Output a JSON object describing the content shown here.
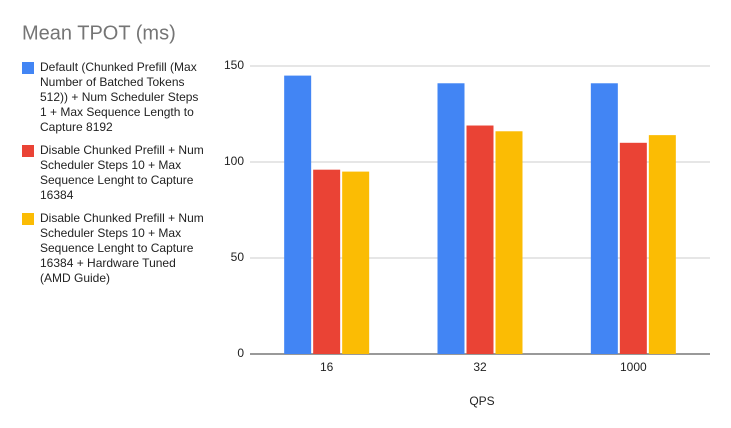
{
  "chart_data": {
    "type": "bar",
    "title": "Mean TPOT (ms)",
    "x_label": "QPS",
    "categories": [
      "16",
      "32",
      "1000"
    ],
    "series": [
      {
        "name": "Default (Chunked Prefill (Max Number of Batched Tokens 512)) + Num Scheduler Steps 1 + Max Sequence Length to Capture 8192",
        "color": "#4285f4",
        "values": [
          145,
          141,
          141
        ]
      },
      {
        "name": "Disable Chunked Prefill + Num Scheduler Steps 10 + Max Sequence Lenght to Capture 16384",
        "color": "#ea4335",
        "values": [
          96,
          119,
          110
        ]
      },
      {
        "name": "Disable Chunked Prefill + Num Scheduler Steps 10 + Max Sequence Lenght to Capture 16384 + Hardware Tuned (AMD Guide)",
        "color": "#fbbc04",
        "values": [
          95,
          116,
          114
        ]
      }
    ],
    "ylim": [
      0,
      150
    ],
    "yticks": [
      0,
      50,
      100,
      150
    ],
    "grid": true,
    "legend": "left"
  }
}
